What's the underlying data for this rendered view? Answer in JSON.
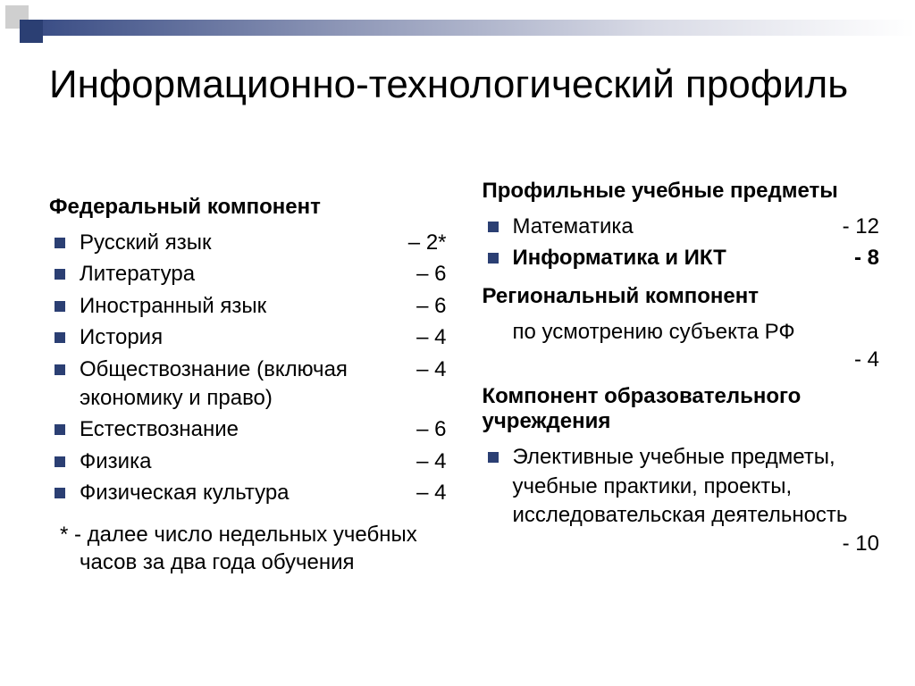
{
  "colors": {
    "accent": "#2b3f73",
    "decor_light": "#cfcfcf",
    "text": "#000000",
    "background": "#ffffff"
  },
  "typography": {
    "title_fontsize": 44,
    "body_fontsize": 24,
    "font_family": "Arial"
  },
  "title": "Информационно-технологический профиль",
  "left": {
    "heading": "Федеральный компонент",
    "items": [
      {
        "label": "Русский язык",
        "value": "– 2*"
      },
      {
        "label": "Литература",
        "value": "– 6"
      },
      {
        "label": "Иностранный язык",
        "value": "– 6"
      },
      {
        "label": "История",
        "value": "– 4"
      },
      {
        "label": "Обществознание (включая экономику и право)",
        "value": "– 4"
      },
      {
        "label": "Естествознание",
        "value": "– 6"
      },
      {
        "label": "Физика",
        "value": "– 4"
      },
      {
        "label": "Физическая культура",
        "value": "– 4"
      }
    ],
    "footnote": "* - далее число недельных учебных часов за два года обучения"
  },
  "right": {
    "section1": {
      "heading": "Профильные учебные предметы",
      "items": [
        {
          "label": "Математика",
          "value": "- 12",
          "bold": false
        },
        {
          "label": "Информатика и ИКТ",
          "value": "- 8",
          "bold": true
        }
      ]
    },
    "section2": {
      "heading": "Региональный компонент",
      "text": "по усмотрению субъекта РФ",
      "value": "- 4"
    },
    "section3": {
      "heading": "Компонент образовательного учреждения",
      "items": [
        {
          "label": "Элективные учебные предметы, учебные практики, проекты, исследовательская деятельность",
          "value": "- 10"
        }
      ]
    }
  }
}
